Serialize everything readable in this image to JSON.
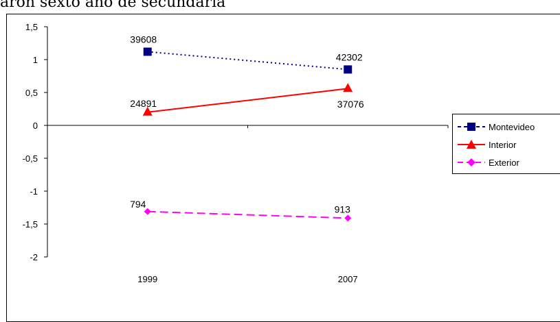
{
  "caption": "aron sexto año de secundaria",
  "chart_data": {
    "type": "line",
    "categories": [
      "1999",
      "2007"
    ],
    "ylim": [
      -2,
      1.5
    ],
    "yticks": [
      "1,5",
      "1",
      "0,5",
      "0",
      "-0,5",
      "-1",
      "-1,5",
      "-2"
    ],
    "ytick_values": [
      1.5,
      1,
      0.5,
      0,
      -0.5,
      -1,
      -1.5,
      -2
    ],
    "grid": false,
    "legend_position": "right",
    "series": [
      {
        "name": "Montevideo",
        "values": [
          1.12,
          0.85
        ],
        "labels": [
          "39608",
          "42302"
        ],
        "color": "#000080",
        "marker": "square",
        "line_style": "dotted"
      },
      {
        "name": "Interior",
        "values": [
          0.2,
          0.56
        ],
        "labels": [
          "24891",
          "37076"
        ],
        "color": "#FF0000",
        "marker": "triangle",
        "line_style": "solid"
      },
      {
        "name": "Exterior",
        "values": [
          -1.31,
          -1.41
        ],
        "labels": [
          "794",
          "913"
        ],
        "color": "#FF00FF",
        "marker": "diamond",
        "line_style": "dashed"
      }
    ]
  }
}
